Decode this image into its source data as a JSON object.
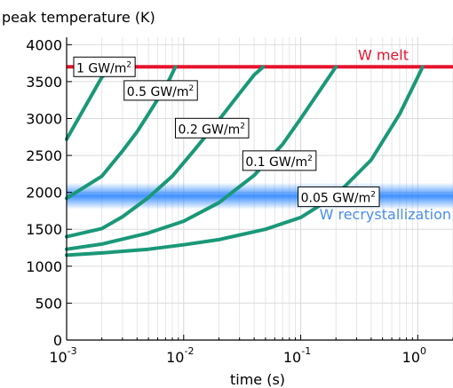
{
  "chart_data": {
    "type": "line",
    "ylabel": "peak temperature (K)",
    "xlabel": "time (s)",
    "xscale": "log",
    "xlim": [
      0.001,
      2
    ],
    "ylim": [
      0,
      4100
    ],
    "grid": true,
    "x_ticks": [
      {
        "value": 0.001,
        "base": "10",
        "exp": "-3"
      },
      {
        "value": 0.01,
        "base": "10",
        "exp": "-2"
      },
      {
        "value": 0.1,
        "base": "10",
        "exp": "-1"
      },
      {
        "value": 1,
        "base": "10",
        "exp": "0"
      }
    ],
    "y_ticks": [
      0,
      500,
      1000,
      1500,
      2000,
      2500,
      3000,
      3500,
      4000
    ],
    "series_color": "#1a9878",
    "series": [
      {
        "name": "1 GW/m²",
        "label_main": "1 GW/m",
        "label_sup": "2",
        "x": [
          0.001,
          0.002,
          0.0025
        ],
        "y": [
          2720,
          3560,
          3700
        ]
      },
      {
        "name": "0.5 GW/m²",
        "label_main": "0.5 GW/m",
        "label_sup": "2",
        "x": [
          0.001,
          0.002,
          0.003,
          0.004,
          0.005,
          0.006,
          0.0075,
          0.0085
        ],
        "y": [
          1920,
          2220,
          2560,
          2820,
          3060,
          3260,
          3520,
          3700
        ]
      },
      {
        "name": "0.2 GW/m²",
        "label_main": "0.2 GW/m",
        "label_sup": "2",
        "x": [
          0.001,
          0.002,
          0.003,
          0.005,
          0.008,
          0.012,
          0.02,
          0.03,
          0.04,
          0.048
        ],
        "y": [
          1400,
          1510,
          1670,
          1930,
          2220,
          2550,
          2980,
          3340,
          3590,
          3700
        ]
      },
      {
        "name": "0.1 GW/m²",
        "label_main": "0.1 GW/m",
        "label_sup": "2",
        "x": [
          0.001,
          0.002,
          0.005,
          0.01,
          0.02,
          0.04,
          0.07,
          0.1,
          0.15,
          0.2
        ],
        "y": [
          1230,
          1300,
          1450,
          1610,
          1860,
          2230,
          2650,
          3000,
          3410,
          3700
        ]
      },
      {
        "name": "0.05 GW/m²",
        "label_main": "0.05 GW/m",
        "label_sup": "2",
        "x": [
          0.001,
          0.002,
          0.005,
          0.01,
          0.02,
          0.05,
          0.1,
          0.2,
          0.4,
          0.7,
          1.0,
          1.1
        ],
        "y": [
          1150,
          1180,
          1230,
          1290,
          1360,
          1500,
          1660,
          1960,
          2440,
          3060,
          3560,
          3700
        ]
      }
    ],
    "label_anchors": [
      {
        "x": 0.00115,
        "y": 3700
      },
      {
        "x": 0.0031,
        "y": 3380
      },
      {
        "x": 0.0085,
        "y": 2870
      },
      {
        "x": 0.032,
        "y": 2430
      },
      {
        "x": 0.095,
        "y": 1940
      }
    ],
    "reference_lines": [
      {
        "name": "W melt",
        "y": 3700,
        "color": "#e8132e"
      },
      {
        "name": "W recrystallization",
        "y": 1950,
        "band": [
          1770,
          2130
        ],
        "color": "#1f7fff",
        "label_color": "#4a8df0"
      }
    ]
  }
}
